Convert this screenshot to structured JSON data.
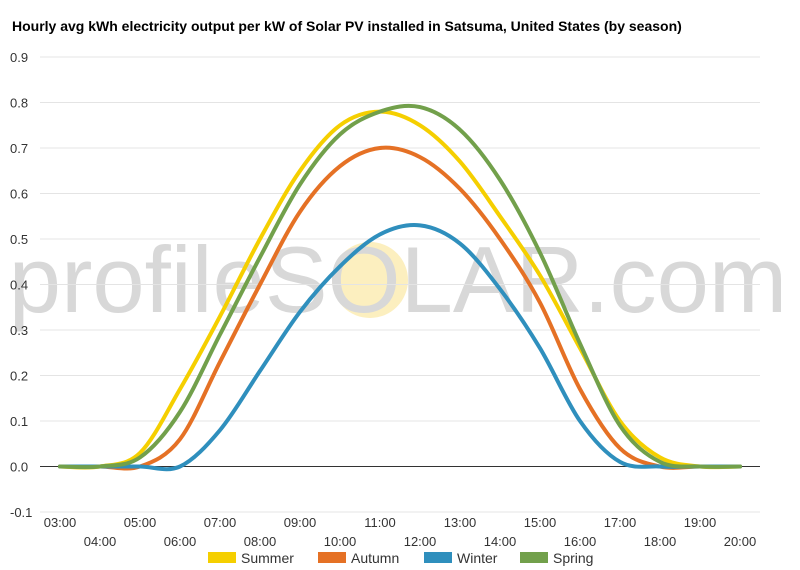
{
  "chart_data": {
    "type": "line",
    "title": "Hourly avg kWh electricity output per kW of Solar PV installed in Satsuma, United States (by season)",
    "xlabel": "",
    "ylabel": "",
    "ylim": [
      -0.1,
      0.9
    ],
    "yticks": [
      "-0.1",
      "0.0",
      "0.1",
      "0.2",
      "0.3",
      "0.4",
      "0.5",
      "0.6",
      "0.7",
      "0.8",
      "0.9"
    ],
    "xlim": [
      2.5,
      20.5
    ],
    "xticks_upper": [
      "03:00",
      "05:00",
      "07:00",
      "09:00",
      "11:00",
      "13:00",
      "15:00",
      "17:00",
      "19:00"
    ],
    "xticks_lower": [
      "04:00",
      "06:00",
      "08:00",
      "10:00",
      "12:00",
      "14:00",
      "16:00",
      "18:00",
      "20:00"
    ],
    "grid": true,
    "legend_position": "bottom",
    "watermark": "profileSOLAR.com",
    "x": [
      "03:00",
      "04:00",
      "05:00",
      "06:00",
      "07:00",
      "08:00",
      "09:00",
      "10:00",
      "11:00",
      "12:00",
      "13:00",
      "14:00",
      "15:00",
      "16:00",
      "17:00",
      "18:00",
      "19:00",
      "20:00"
    ],
    "series": [
      {
        "name": "Summer",
        "color": "#f5cf00",
        "values": [
          0.0,
          0.0,
          0.03,
          0.17,
          0.33,
          0.5,
          0.65,
          0.75,
          0.78,
          0.75,
          0.67,
          0.55,
          0.42,
          0.26,
          0.1,
          0.02,
          0.0,
          0.0
        ]
      },
      {
        "name": "Autumn",
        "color": "#e57125",
        "values": [
          0.0,
          0.0,
          0.0,
          0.06,
          0.23,
          0.4,
          0.56,
          0.66,
          0.7,
          0.68,
          0.61,
          0.5,
          0.36,
          0.17,
          0.04,
          0.0,
          0.0,
          0.0
        ]
      },
      {
        "name": "Winter",
        "color": "#2f8fbd",
        "values": [
          0.0,
          0.0,
          0.0,
          0.0,
          0.08,
          0.21,
          0.34,
          0.44,
          0.51,
          0.53,
          0.49,
          0.39,
          0.26,
          0.1,
          0.01,
          0.0,
          0.0,
          0.0
        ]
      },
      {
        "name": "Spring",
        "color": "#72a04b",
        "values": [
          0.0,
          0.0,
          0.02,
          0.12,
          0.29,
          0.46,
          0.62,
          0.73,
          0.78,
          0.79,
          0.74,
          0.63,
          0.47,
          0.27,
          0.09,
          0.01,
          0.0,
          0.0
        ]
      }
    ]
  }
}
